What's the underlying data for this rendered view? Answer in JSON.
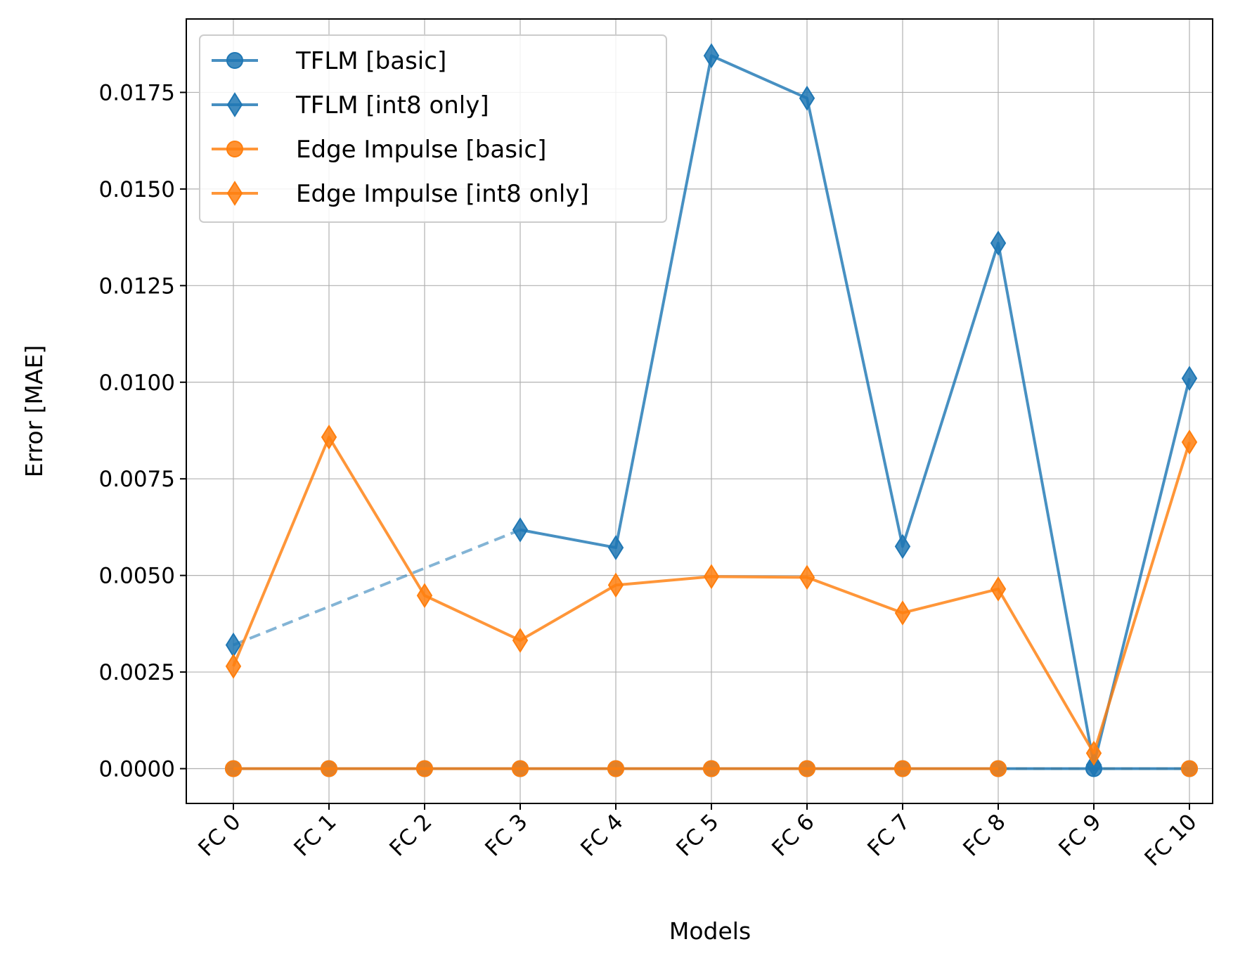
{
  "chart_data": {
    "type": "line",
    "title": "",
    "xlabel": "Models",
    "ylabel": "Error [MAE]",
    "categories": [
      "FC 0",
      "FC 1",
      "FC 2",
      "FC 3",
      "FC 4",
      "FC 5",
      "FC 6",
      "FC 7",
      "FC 8",
      "FC 9",
      "FC 10"
    ],
    "ylim": [
      -0.0009,
      0.0194
    ],
    "yticks": [
      0.0,
      0.0025,
      0.005,
      0.0075,
      0.01,
      0.0125,
      0.015,
      0.0175
    ],
    "ytick_labels": [
      "0.0000",
      "0.0025",
      "0.0050",
      "0.0075",
      "0.0100",
      "0.0125",
      "0.0150",
      "0.0175"
    ],
    "grid": true,
    "legend_position": "top-left",
    "colors": {
      "tflm": "#1f77b4",
      "edge": "#ff7f0e",
      "both": "#d08a3a"
    },
    "series": [
      {
        "name": "TFLM [basic]",
        "color": "#1f77b4",
        "marker": "circle",
        "values": [
          0.0,
          0.0,
          0.0,
          0.0,
          0.0,
          0.0,
          0.0,
          0.0,
          0.0,
          0.0,
          0.0
        ]
      },
      {
        "name": "TFLM [int8 only]",
        "color": "#1f77b4",
        "marker": "diamond",
        "values": [
          0.0032,
          null,
          null,
          0.00618,
          0.00572,
          0.01845,
          0.01735,
          0.00575,
          0.0136,
          0.0001,
          0.0101
        ]
      },
      {
        "name": "Edge Impulse [basic]",
        "color": "#ff7f0e",
        "marker": "circle",
        "values": [
          0.0,
          0.0,
          0.0,
          0.0,
          0.0,
          0.0,
          0.0,
          0.0,
          0.0,
          null,
          0.0
        ]
      },
      {
        "name": "Edge Impulse [int8 only]",
        "color": "#ff7f0e",
        "marker": "diamond",
        "values": [
          0.00265,
          0.00858,
          0.00448,
          0.00332,
          0.00475,
          0.00497,
          0.00495,
          0.00403,
          0.00465,
          0.0004,
          0.00845
        ]
      }
    ],
    "gap_lines": [
      {
        "series": "TFLM [int8 only]",
        "color": "#1f77b4",
        "style": "dashed",
        "from": [
          "FC 0",
          0.0032
        ],
        "to": [
          "FC 3",
          0.00618
        ]
      },
      {
        "series": "Edge Impulse [basic]",
        "color": "#d08a3a",
        "style": "dashed",
        "from": [
          "FC 8",
          0.0
        ],
        "to": [
          "FC 10",
          0.0
        ]
      }
    ]
  }
}
